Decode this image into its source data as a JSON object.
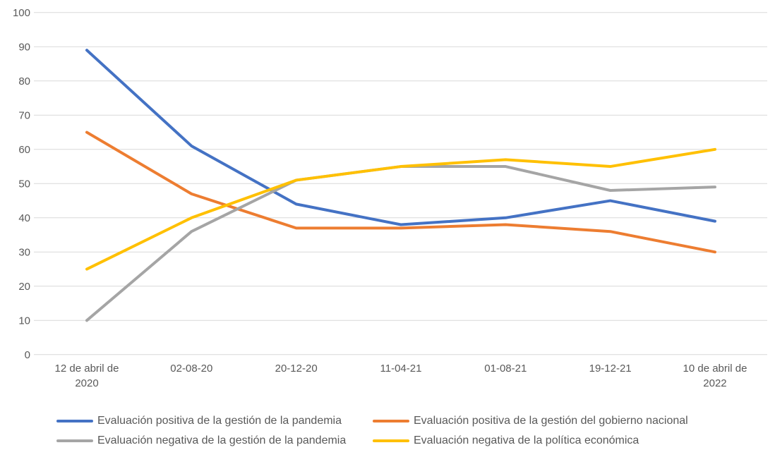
{
  "chart_data": {
    "type": "line",
    "title": "",
    "xlabel": "",
    "ylabel": "",
    "categories": [
      "12 de abril de 2020",
      "02-08-20",
      "20-12-20",
      "11-04-21",
      "01-08-21",
      "19-12-21",
      "10 de abril de 2022"
    ],
    "series": [
      {
        "name": "Evaluación positiva de la gestión de la pandemia",
        "color": "#4472C4",
        "values": [
          89,
          61,
          44,
          38,
          40,
          45,
          39
        ]
      },
      {
        "name": "Evaluación positiva de la gestión del gobierno nacional",
        "color": "#ED7D31",
        "values": [
          65,
          47,
          37,
          37,
          38,
          36,
          30
        ]
      },
      {
        "name": "Evaluación negativa de la gestión de la pandemia",
        "color": "#A5A5A5",
        "values": [
          10,
          36,
          51,
          55,
          55,
          48,
          49
        ]
      },
      {
        "name": "Evaluación negativa de la política económica",
        "color": "#FFC000",
        "values": [
          25,
          40,
          51,
          55,
          57,
          55,
          60
        ]
      }
    ],
    "ylim": [
      0,
      100
    ],
    "yticks": [
      0,
      10,
      20,
      30,
      40,
      50,
      60,
      70,
      80,
      90,
      100
    ],
    "grid": true,
    "legend_position": "bottom",
    "legend_columns": 2
  },
  "styles": {
    "background": "#FFFFFF",
    "grid_color": "#D9D9D9",
    "axis_line_color": "#D9D9D9",
    "axis_text_color": "#595959",
    "line_width": 4
  }
}
